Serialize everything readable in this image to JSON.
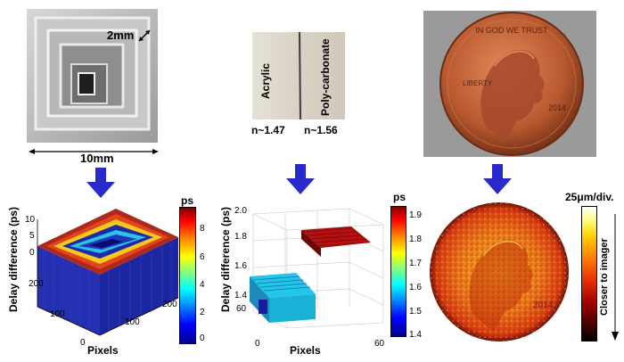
{
  "photos": {
    "pyramid": {
      "dim_top": "2mm",
      "dim_bottom": "10mm"
    },
    "plastic": {
      "left_material": "Acrylic",
      "right_material": "Poly-carbonate",
      "n_left": "n~1.47",
      "n_right": "n~1.56"
    },
    "penny": {
      "word_top": "IN GOD WE TRUST",
      "word_left": "LIBERTY",
      "year": "2014"
    }
  },
  "plots": {
    "pyramid": {
      "ylabel": "Delay difference (ps)",
      "xlabel": "Pixels",
      "zticks": [
        "10",
        "5",
        "0"
      ],
      "xticks": [
        "0",
        "100",
        "200"
      ],
      "yticks": [
        "200",
        "100",
        "0"
      ],
      "colorbar_unit": "ps",
      "colorbar_ticks": [
        "8",
        "6",
        "4",
        "2",
        "0"
      ]
    },
    "plastic": {
      "ylabel": "Delay difference (ps)",
      "xlabel": "Pixels",
      "zticks": [
        "2.0",
        "1.8",
        "1.6",
        "1.4"
      ],
      "xticks": [
        "0",
        "60"
      ],
      "ytick_left": "60",
      "colorbar_unit": "ps",
      "colorbar_ticks": [
        "1.9",
        "1.8",
        "1.7",
        "1.6",
        "1.5",
        "1.4"
      ]
    },
    "penny": {
      "scale_label": "25μm/div.",
      "colorbar_label": "Closer to imager",
      "year": "2014"
    }
  },
  "colors": {
    "arrow": "#2a2acc",
    "jet_low": "#00008f",
    "jet_high": "#800000"
  }
}
